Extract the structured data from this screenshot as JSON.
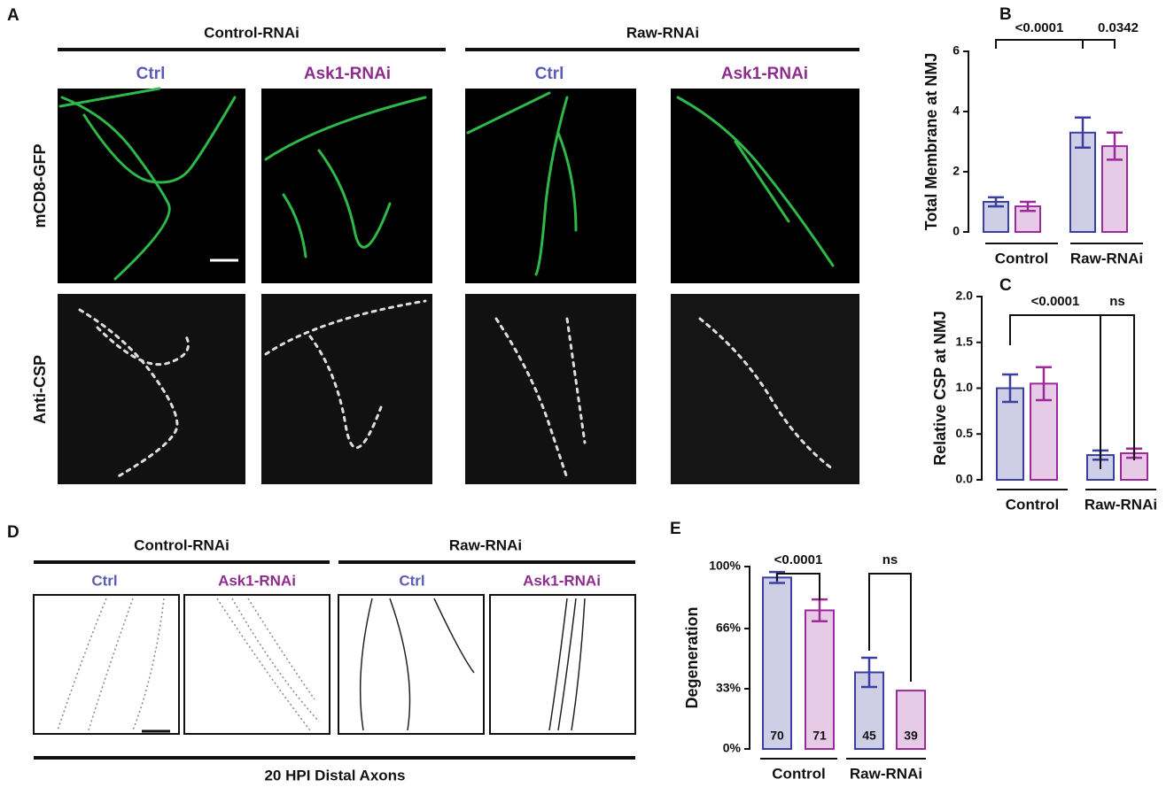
{
  "panel_labels": [
    "A",
    "B",
    "C",
    "D",
    "E"
  ],
  "panel_a": {
    "group_labels": [
      "Control-RNAi",
      "Raw-RNAi"
    ],
    "column_labels": [
      "Ctrl",
      "Ask1-RNAi",
      "Ctrl",
      "Ask1-RNAi"
    ],
    "row_labels": [
      "mCD8-GFP",
      "Anti-CSP"
    ]
  },
  "panel_d": {
    "group_labels": [
      "Control-RNAi",
      "Raw-RNAi"
    ],
    "column_labels": [
      "Ctrl",
      "Ask1-RNAi",
      "Ctrl",
      "Ask1-RNAi"
    ],
    "caption": "20 HPI Distal Axons"
  },
  "chart_data": [
    {
      "type": "bar",
      "ylabel": "Total Membrane at NMJ",
      "categories": [
        "Control",
        "Raw-RNAi"
      ],
      "series": [
        {
          "color": "#3b3fa0",
          "values": [
            1.0,
            3.3
          ],
          "errors": [
            0.15,
            0.5
          ]
        },
        {
          "color": "#9b2a9b",
          "values": [
            0.85,
            2.85
          ],
          "errors": [
            0.15,
            0.45
          ]
        }
      ],
      "ylim": [
        0,
        6
      ],
      "yticks": [
        0,
        2,
        4,
        6
      ],
      "annotations": [
        "<0.0001",
        "0.0342"
      ]
    },
    {
      "type": "bar",
      "ylabel": "Relative CSP at NMJ",
      "categories": [
        "Control",
        "Raw-RNAi"
      ],
      "series": [
        {
          "color": "#3b3fa0",
          "values": [
            1.0,
            0.27
          ],
          "errors": [
            0.15,
            0.05
          ]
        },
        {
          "color": "#9b2a9b",
          "values": [
            1.05,
            0.29
          ],
          "errors": [
            0.18,
            0.05
          ]
        }
      ],
      "ylim": [
        0,
        2
      ],
      "yticks": [
        {
          "value": 0,
          "label": "0.0"
        },
        {
          "value": 0.5,
          "label": "0.5"
        },
        {
          "value": 1,
          "label": "1.0"
        },
        {
          "value": 1.5,
          "label": "1.5"
        },
        {
          "value": 2,
          "label": "2.0"
        }
      ],
      "annotations": [
        "<0.0001",
        "ns"
      ]
    },
    {
      "type": "bar",
      "ylabel": "Degeneration",
      "categories": [
        "Control",
        "Raw-RNAi"
      ],
      "series": [
        {
          "color": "#3b3fa0",
          "values": [
            94,
            42
          ],
          "errors": [
            3,
            8
          ],
          "n_labels": [
            "70",
            "45"
          ]
        },
        {
          "color": "#9b2a9b",
          "values": [
            76,
            32
          ],
          "errors": [
            6,
            null
          ],
          "n_labels": [
            "71",
            "39"
          ]
        }
      ],
      "ylim": [
        0,
        100
      ],
      "yticks": [
        {
          "value": 0,
          "label": "0%"
        },
        {
          "value": 33,
          "label": "33%"
        },
        {
          "value": 66,
          "label": "66%"
        },
        {
          "value": 100,
          "label": "100%"
        }
      ],
      "annotations": [
        "<0.0001",
        "ns"
      ]
    }
  ]
}
